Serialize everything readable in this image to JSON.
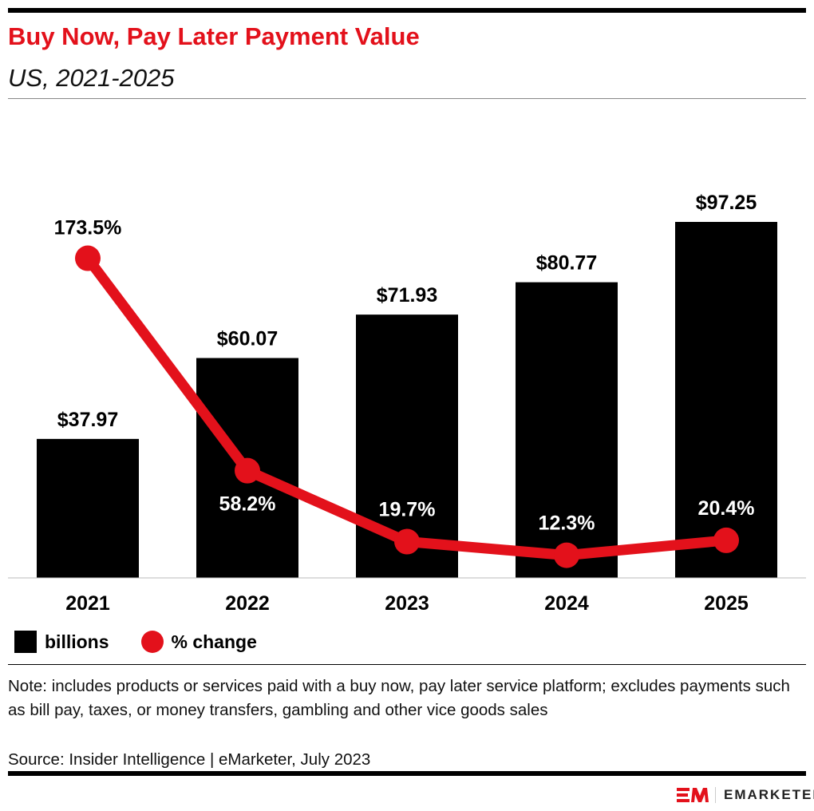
{
  "title": "Buy Now, Pay Later Payment Value",
  "subtitle": "US, 2021-2025",
  "chart_data": {
    "type": "bar+line",
    "categories": [
      "2021",
      "2022",
      "2023",
      "2024",
      "2025"
    ],
    "series": [
      {
        "name": "billions",
        "type": "bar",
        "color": "#000000",
        "values": [
          37.97,
          60.07,
          71.93,
          80.77,
          97.25
        ],
        "labels": [
          "$37.97",
          "$60.07",
          "$71.93",
          "$80.77",
          "$97.25"
        ]
      },
      {
        "name": "% change",
        "type": "line",
        "color": "#e3111b",
        "values": [
          173.5,
          58.2,
          19.7,
          12.3,
          20.4
        ],
        "labels": [
          "173.5%",
          "58.2%",
          "19.7%",
          "12.3%",
          "20.4%"
        ]
      }
    ],
    "grid": false,
    "legend": "bottom-left"
  },
  "note": "Note: includes products or services paid with a buy now, pay later service platform; excludes payments such as bill pay, taxes, or money transfers, gambling and other vice goods sales",
  "source": "Source: Insider Intelligence | eMarketer, July 2023",
  "logo": {
    "mark": "EM",
    "text": "EMARKETER"
  }
}
